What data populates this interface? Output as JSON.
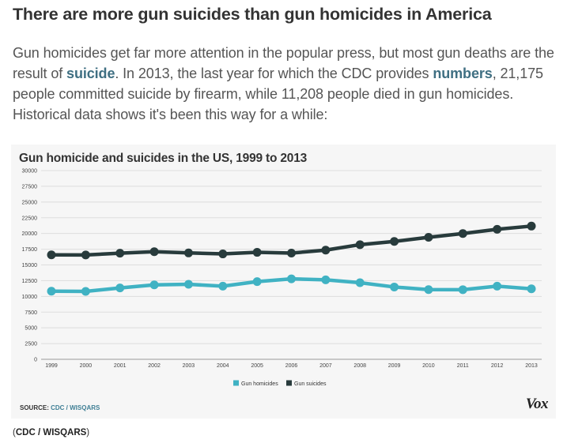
{
  "headline": "There are more gun suicides than gun homicides in America",
  "lede": {
    "part1": "Gun homicides get far more attention in the popular press, but most gun deaths are the result of ",
    "link1": "suicide",
    "part2": ". In 2013, the last year for which the CDC provides ",
    "link2": "numbers",
    "part3": ", 21,175 people committed suicide by firearm, while 11,208 people died in gun homicides. Historical data shows it's been this way for a while:"
  },
  "source": {
    "label": "SOURCE: ",
    "link": "CDC / WISQARS"
  },
  "logo_text": "Vox",
  "credit": {
    "open": "(",
    "link": "CDC / WISQARS",
    "close": ")"
  },
  "colors": {
    "homicides": "#40b2c3",
    "suicides": "#283b3c",
    "grid": "#dddddd"
  },
  "chart_data": {
    "type": "line",
    "title": "Gun homicide and suicides in the US, 1999 to 2013",
    "xlabel": "",
    "ylabel": "",
    "ylim": [
      0,
      30000
    ],
    "yticks": [
      "0",
      "2500",
      "5000",
      "7500",
      "10000",
      "12500",
      "15000",
      "17500",
      "20000",
      "22500",
      "25000",
      "27500",
      "30000"
    ],
    "x": [
      "1999",
      "2000",
      "2001",
      "2002",
      "2003",
      "2004",
      "2005",
      "2006",
      "2007",
      "2008",
      "2009",
      "2010",
      "2011",
      "2012",
      "2013"
    ],
    "series": [
      {
        "name": "Gun homicides",
        "values": [
          10828,
          10801,
          11348,
          11829,
          11920,
          11624,
          12352,
          12791,
          12632,
          12179,
          11493,
          11078,
          11068,
          11622,
          11208
        ]
      },
      {
        "name": "Gun suicides",
        "values": [
          16599,
          16586,
          16869,
          17108,
          16907,
          16750,
          17002,
          16883,
          17352,
          18223,
          18735,
          19392,
          19990,
          20666,
          21175
        ]
      }
    ],
    "legend": "bottom-center",
    "grid": true
  }
}
